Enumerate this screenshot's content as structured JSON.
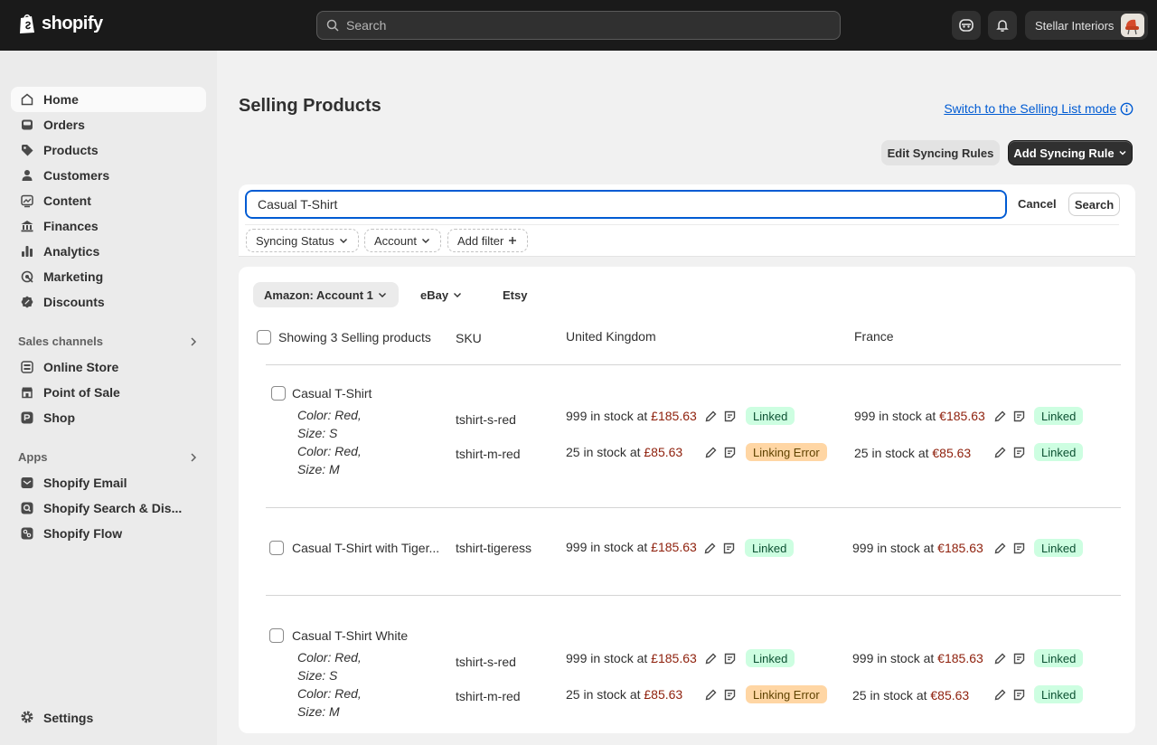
{
  "topbar": {
    "brand": "shopify",
    "search_placeholder": "Search",
    "store_name": "Stellar Interiors"
  },
  "sidebar": {
    "main": [
      {
        "label": "Home",
        "icon": "home-icon"
      },
      {
        "label": "Orders",
        "icon": "orders-icon"
      },
      {
        "label": "Products",
        "icon": "tag-icon"
      },
      {
        "label": "Customers",
        "icon": "person-icon"
      },
      {
        "label": "Content",
        "icon": "content-icon"
      },
      {
        "label": "Finances",
        "icon": "bank-icon"
      },
      {
        "label": "Analytics",
        "icon": "chart-icon"
      },
      {
        "label": "Marketing",
        "icon": "target-icon"
      },
      {
        "label": "Discounts",
        "icon": "discount-icon"
      }
    ],
    "sales_channels_label": "Sales channels",
    "sales_channels": [
      {
        "label": "Online Store"
      },
      {
        "label": "Point of Sale"
      },
      {
        "label": "Shop"
      }
    ],
    "apps_label": "Apps",
    "apps": [
      {
        "label": "Shopify Email"
      },
      {
        "label": "Shopify Search & Dis..."
      },
      {
        "label": "Shopify Flow"
      }
    ],
    "settings_label": "Settings"
  },
  "main": {
    "title": "Selling Products",
    "switch_link": "Switch to the Selling List mode",
    "edit_rules_label": "Edit Syncing Rules",
    "add_rule_label": "Add Syncing Rule",
    "search_value": "Casual T-Shirt",
    "cancel_label": "Cancel",
    "search_label": "Search",
    "filters": [
      "Syncing Status",
      "Account",
      "Add filter"
    ]
  },
  "table": {
    "tabs": [
      "Amazon: Account 1",
      "eBay",
      "Etsy"
    ],
    "headers": {
      "showing": "Showing 3 Selling products",
      "sku": "SKU",
      "uk": "United Kingdom",
      "fr": "France"
    },
    "in_stock_text": "in stock at",
    "products": [
      {
        "name": "Casual T-Shirt",
        "variants": [
          {
            "line1": "Color: Red,",
            "line2": "Size: S",
            "sku": "tshirt-s-red",
            "uk_qty": "999",
            "uk_price": "£185.63",
            "uk_status": "Linked",
            "fr_qty": "999",
            "fr_price": "€185.63",
            "fr_status": "Linked"
          },
          {
            "line1": "Color: Red,",
            "line2": "Size: M",
            "sku": "tshirt-m-red",
            "uk_qty": "25",
            "uk_price": "£85.63",
            "uk_status": "Linking Error",
            "fr_qty": "25",
            "fr_price": "€85.63",
            "fr_status": "Linked"
          }
        ]
      },
      {
        "name": "Casual T-Shirt with Tiger...",
        "sku": "tshirt-tigeress",
        "uk_qty": "999",
        "uk_price": "£185.63",
        "uk_status": "Linked",
        "fr_qty": "999",
        "fr_price": "€185.63",
        "fr_status": "Linked"
      },
      {
        "name": "Casual T-Shirt White",
        "variants": [
          {
            "line1": "Color: Red,",
            "line2": "Size: S",
            "sku": "tshirt-s-red",
            "uk_qty": "999",
            "uk_price": "£185.63",
            "uk_status": "Linked",
            "fr_qty": "999",
            "fr_price": "€185.63",
            "fr_status": "Linked"
          },
          {
            "line1": "Color: Red,",
            "line2": "Size: M",
            "sku": "tshirt-m-red",
            "uk_qty": "25",
            "uk_price": "£85.63",
            "uk_status": "Linking Error",
            "fr_qty": "25",
            "fr_price": "€85.63",
            "fr_status": "Linked"
          }
        ]
      }
    ]
  },
  "colors": {
    "accent": "#005bd3",
    "price": "#8e1f0b",
    "linked_bg": "#cdfee1",
    "error_bg": "#ffd6a4"
  }
}
